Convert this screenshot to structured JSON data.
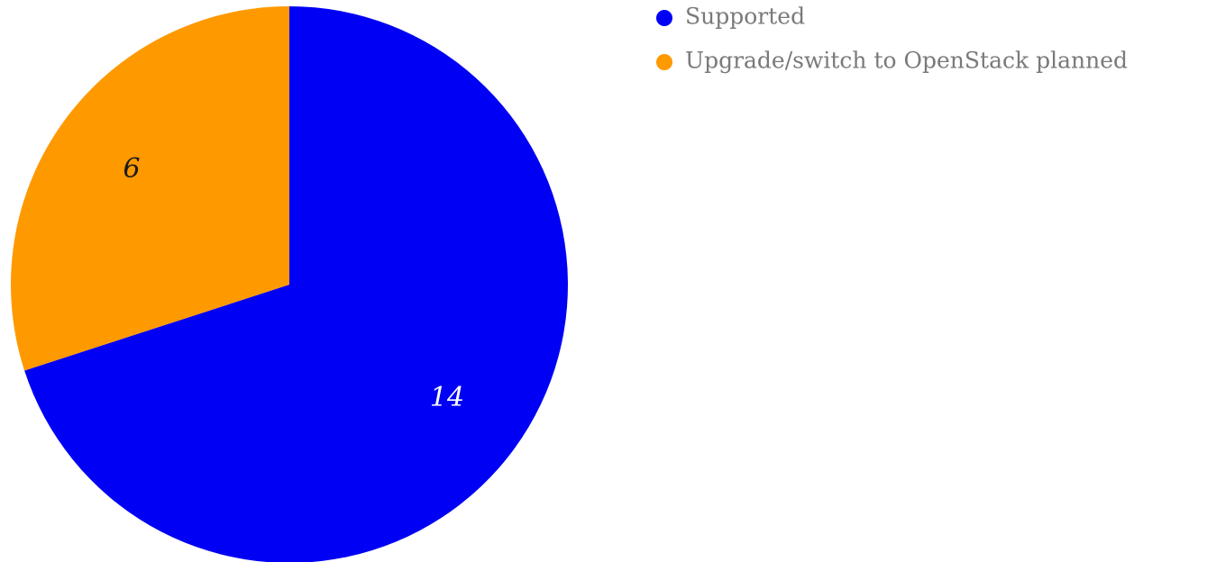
{
  "chart_data": {
    "type": "pie",
    "title": "",
    "slices": [
      {
        "label": "Supported",
        "value": 14,
        "color": "#0000f5",
        "label_color": "#ffffff"
      },
      {
        "label": "Upgrade/switch to OpenStack planned",
        "value": 6,
        "color": "#ff9900",
        "label_color": "#1a1a1a"
      }
    ],
    "start_angle": "12 o'clock",
    "direction": "clockwise",
    "legend": {
      "position": "top-right",
      "items": [
        "Supported",
        "Upgrade/switch to OpenStack planned"
      ]
    }
  }
}
